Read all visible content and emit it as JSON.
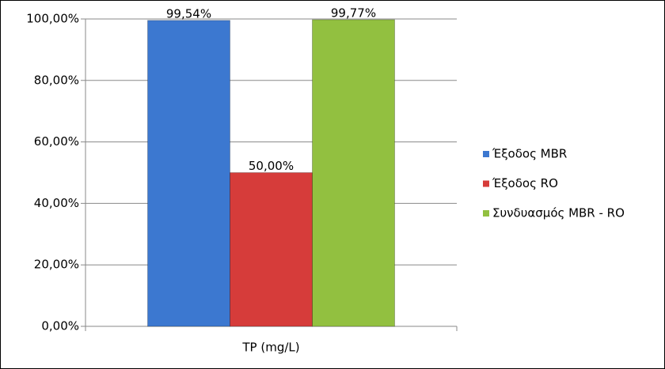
{
  "chart_data": {
    "type": "bar",
    "categories": [
      "TP (mg/L)"
    ],
    "series": [
      {
        "name": "Έξοδος MBR",
        "color": "#3c78d0",
        "values": [
          99.54
        ],
        "value_labels": [
          "99,54%"
        ]
      },
      {
        "name": "Έξοδος RO",
        "color": "#d63c3a",
        "values": [
          50.0
        ],
        "value_labels": [
          "50,00%"
        ]
      },
      {
        "name": "Συνδυασμός MBR - RO",
        "color": "#92c040",
        "values": [
          99.77
        ],
        "value_labels": [
          "99,77%"
        ]
      }
    ],
    "ylim": [
      0,
      100
    ],
    "yticks": [
      {
        "value": 0,
        "label": "0,00%"
      },
      {
        "value": 20,
        "label": "20,00%"
      },
      {
        "value": 40,
        "label": "40,00%"
      },
      {
        "value": 60,
        "label": "60,00%"
      },
      {
        "value": 80,
        "label": "80,00%"
      },
      {
        "value": 100,
        "label": "100,00%"
      }
    ],
    "grid": true,
    "legend": "right"
  }
}
